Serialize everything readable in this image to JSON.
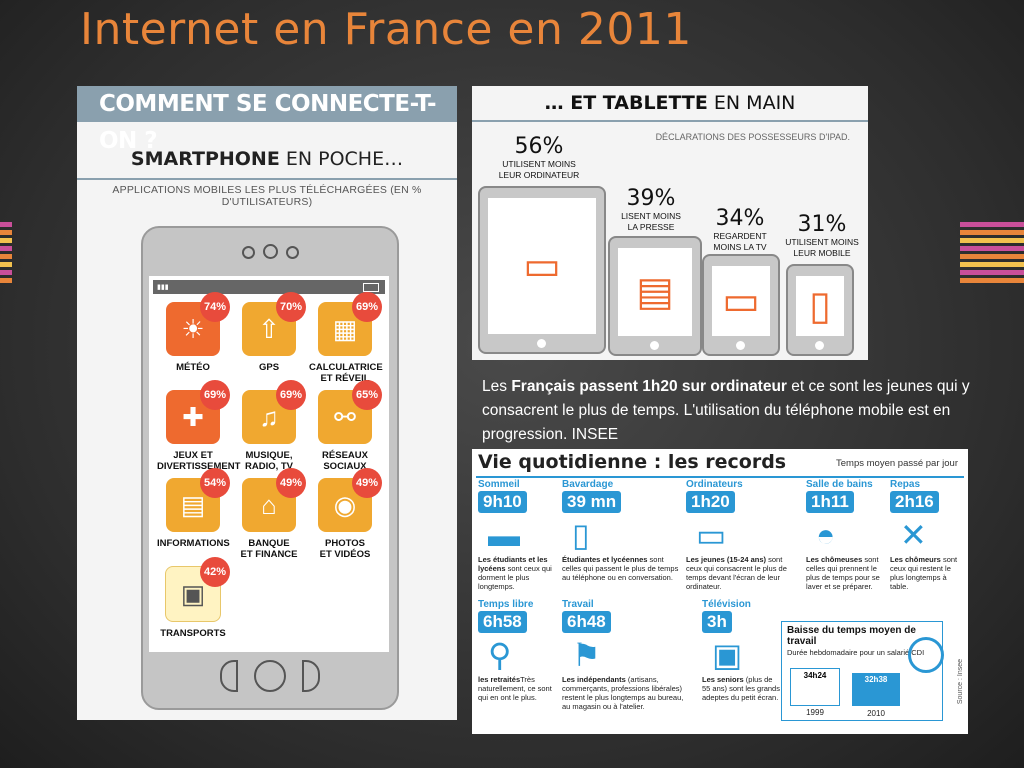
{
  "title": "Internet en France en 2011",
  "left": {
    "header": "COMMENT SE CONNECTE-T-ON ?",
    "sub_bold": "SMARTPHONE",
    "sub_rest": " EN POCHE…",
    "caption": "APPLICATIONS MOBILES LES PLUS TÉLÉCHARGÉES (EN % D'UTILISATEURS)",
    "apps": [
      {
        "label": "MÉTÉO",
        "pct": "74%",
        "icon": "sun-icon",
        "glyph": "☀"
      },
      {
        "label": "GPS",
        "pct": "70%",
        "icon": "home-arrow-icon",
        "glyph": "⇧"
      },
      {
        "label": "CALCULATRICE\nET RÉVEIL",
        "pct": "69%",
        "icon": "calculator-icon",
        "glyph": "▦"
      },
      {
        "label": "JEUX ET\nDIVERTISSEMENT",
        "pct": "69%",
        "icon": "gamepad-icon",
        "glyph": "✚"
      },
      {
        "label": "MUSIQUE,\nRADIO, TV",
        "pct": "69%",
        "icon": "music-note-icon",
        "glyph": "♫"
      },
      {
        "label": "RÉSEAUX\nSOCIAUX",
        "pct": "65%",
        "icon": "network-icon",
        "glyph": "⚯"
      },
      {
        "label": "INFORMATIONS",
        "pct": "54%",
        "icon": "newspaper-icon",
        "glyph": "▤"
      },
      {
        "label": "BANQUE\nET FINANCE",
        "pct": "49%",
        "icon": "bank-icon",
        "glyph": "⌂"
      },
      {
        "label": "PHOTOS\nET VIDÉOS",
        "pct": "49%",
        "icon": "camera-icon",
        "glyph": "◉"
      },
      {
        "label": "TRANSPORTS",
        "pct": "42%",
        "icon": "train-icon",
        "glyph": "▣"
      }
    ]
  },
  "tablet": {
    "header_bold": "… ET TABLETTE",
    "header_rest": " EN MAIN",
    "note": "DÉCLARATIONS DES POSSESSEURS D'IPAD.",
    "stats": [
      {
        "pct": "56%",
        "desc": "UTILISENT MOINS\nLEUR ORDINATEUR",
        "icon": "computer-icon"
      },
      {
        "pct": "39%",
        "desc": "LISENT MOINS\nLA PRESSE",
        "icon": "newspaper-icon"
      },
      {
        "pct": "34%",
        "desc": "REGARDENT\nMOINS LA TV",
        "icon": "tv-icon"
      },
      {
        "pct": "31%",
        "desc": "UTILISENT MOINS\nLEUR MOBILE",
        "icon": "mobile-icon"
      }
    ]
  },
  "text": {
    "p1": "Les ",
    "p1_bold": "Français passent 1h20 sur ordinateur",
    "p1_rest": " et ce sont les jeunes qui y consacrent le plus de temps. L'utilisation du téléphone mobile est en progression. INSEE"
  },
  "records": {
    "title": "Vie quotidienne : les records",
    "subtitle": "Temps moyen passé par jour",
    "categories": [
      {
        "name": "Sommeil",
        "time": "9h10",
        "icon": "bed-icon",
        "glyph": "▬",
        "d_bold": "Les étudiants et les lycéens",
        "d": " sont ceux qui dorment le plus longtemps."
      },
      {
        "name": "Bavardage",
        "time": "39 mn",
        "icon": "phone-icon",
        "glyph": "▯",
        "d_bold": "Étudiantes et lycéennes",
        "d": " sont celles qui passent le plus de temps au téléphone ou en conversation."
      },
      {
        "name": "Ordinateurs",
        "time": "1h20",
        "icon": "laptop-icon",
        "glyph": "▭",
        "d_bold": "Les jeunes (15-24 ans)",
        "d": " sont ceux qui consacrent le plus de temps devant l'écran de leur ordinateur."
      },
      {
        "name": "Salle de bains",
        "time": "1h11",
        "icon": "person-icon",
        "glyph": "◓",
        "d_bold": "Les chômeuses",
        "d": " sont celles qui prennent le plus de temps pour se laver et se préparer."
      },
      {
        "name": "Repas",
        "time": "2h16",
        "icon": "cutlery-icon",
        "glyph": "✕",
        "d_bold": "Les chômeurs",
        "d": " sont ceux qui restent le plus longtemps à table."
      },
      {
        "name": "Temps libre",
        "time": "6h58",
        "icon": "walking-man-icon",
        "glyph": "⚲",
        "d_bold": "les retraités",
        "d": "Très naturellement, ce sont  qui en ont le plus."
      },
      {
        "name": "Travail",
        "time": "6h48",
        "icon": "worker-icon",
        "glyph": "⚑",
        "d_bold": "Les indépendants",
        "d": " (artisans, commerçants, professions libérales) restent le plus longtemps au bureau, au magasin ou à l'atelier."
      },
      {
        "name": "Télévision",
        "time": "3h",
        "icon": "tv-icon",
        "glyph": "▣",
        "d_bold": "Les seniors",
        "d": " (plus de 55 ans) sont les grands adeptes du petit écran."
      }
    ],
    "baisse": {
      "title": "Baisse du temps moyen de travail",
      "sub": "Durée hebdomadaire pour un salarié CDI",
      "bars": [
        {
          "year": "1999",
          "value": "34h24"
        },
        {
          "year": "2010",
          "value": "32h38"
        }
      ]
    },
    "source": "Source : Insee"
  }
}
